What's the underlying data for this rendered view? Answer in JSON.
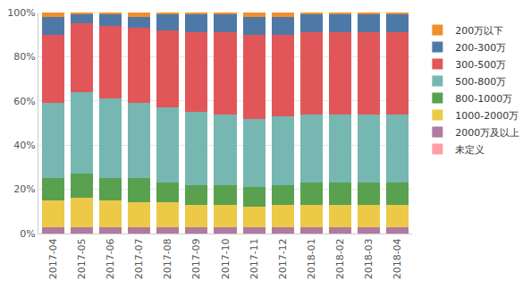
{
  "chart_data": {
    "type": "bar",
    "stacked": true,
    "grid": true,
    "legend": "right",
    "categories": [
      "2017-04",
      "2017-05",
      "2017-06",
      "2017-07",
      "2017-08",
      "2017-09",
      "2017-10",
      "2017-11",
      "2017-12",
      "2018-01",
      "2018-02",
      "2018-03",
      "2018-04"
    ],
    "ylim": [
      0,
      100
    ],
    "yticks": [
      {
        "value": 0,
        "label": "0%"
      },
      {
        "value": 20,
        "label": "20%"
      },
      {
        "value": 40,
        "label": "40%"
      },
      {
        "value": 60,
        "label": "60%"
      },
      {
        "value": 80,
        "label": "80%"
      },
      {
        "value": 100,
        "label": "100%"
      }
    ],
    "series": [
      {
        "name": "未定义",
        "color": "#ff9da7",
        "values": [
          0,
          0,
          0,
          0,
          0,
          0,
          0,
          0,
          0,
          0,
          0,
          0,
          0
        ]
      },
      {
        "name": "2000万及以上",
        "color": "#b07aa1",
        "values": [
          3,
          3,
          3,
          3,
          3,
          3,
          3,
          3,
          3,
          3,
          3,
          3,
          3
        ]
      },
      {
        "name": "1000-2000万",
        "color": "#edc948",
        "values": [
          12,
          13,
          12,
          11,
          11,
          10,
          10,
          9,
          10,
          10,
          10,
          10,
          10
        ]
      },
      {
        "name": "800-1000万",
        "color": "#59a14f",
        "values": [
          10,
          11,
          10,
          11,
          9,
          9,
          9,
          9,
          9,
          10,
          10,
          10,
          10
        ]
      },
      {
        "name": "500-800万",
        "color": "#76b7b2",
        "values": [
          34,
          37,
          36,
          34,
          34,
          33,
          32,
          31,
          31,
          31,
          31,
          31,
          31
        ]
      },
      {
        "name": "300-500万",
        "color": "#e15759",
        "values": [
          31,
          31,
          33,
          34,
          35,
          36,
          37,
          38,
          37,
          37,
          37,
          37,
          37
        ]
      },
      {
        "name": "200-300万",
        "color": "#4e79a7",
        "values": [
          8,
          4,
          5,
          5,
          7,
          8,
          8,
          8,
          8,
          8,
          8,
          8,
          8
        ]
      },
      {
        "name": "200万以下",
        "color": "#f28e2b",
        "values": [
          2,
          1,
          1,
          2,
          1,
          1,
          1,
          2,
          2,
          1,
          1,
          1,
          1
        ]
      }
    ]
  }
}
